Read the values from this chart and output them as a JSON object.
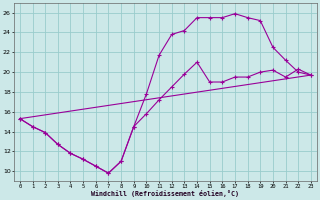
{
  "xlabel": "Windchill (Refroidissement éolien,°C)",
  "bg_color": "#cce8e8",
  "grid_color": "#99cccc",
  "line_color": "#990099",
  "xlim": [
    -0.5,
    23.5
  ],
  "ylim": [
    9,
    27
  ],
  "xticks": [
    0,
    1,
    2,
    3,
    4,
    5,
    6,
    7,
    8,
    9,
    10,
    11,
    12,
    13,
    14,
    15,
    16,
    17,
    18,
    19,
    20,
    21,
    22,
    23
  ],
  "yticks": [
    10,
    12,
    14,
    16,
    18,
    20,
    22,
    24,
    26
  ],
  "line1_x": [
    0,
    1,
    2,
    3,
    4,
    5,
    6,
    7,
    8,
    9,
    10,
    11,
    12,
    13,
    14,
    15,
    16,
    17,
    18,
    19,
    20,
    21,
    22,
    23
  ],
  "line1_y": [
    15.3,
    14.5,
    13.9,
    12.7,
    11.8,
    11.2,
    10.5,
    9.8,
    11.0,
    14.5,
    17.8,
    21.7,
    23.8,
    24.2,
    25.5,
    25.5,
    25.5,
    25.9,
    25.5,
    25.2,
    22.5,
    21.2,
    20.0,
    19.7
  ],
  "line2_x": [
    0,
    1,
    2,
    3,
    4,
    5,
    6,
    7,
    8,
    9,
    10,
    11,
    12,
    13,
    14,
    15,
    16,
    17,
    18,
    19,
    20,
    21,
    22,
    23
  ],
  "line2_y": [
    15.3,
    14.5,
    13.9,
    12.7,
    11.8,
    11.2,
    10.5,
    9.8,
    11.0,
    14.5,
    15.8,
    17.2,
    18.5,
    19.8,
    21.0,
    19.0,
    19.0,
    19.5,
    19.5,
    20.0,
    20.2,
    19.5,
    20.3,
    19.7
  ],
  "line3_x": [
    0,
    23
  ],
  "line3_y": [
    15.3,
    19.7
  ]
}
